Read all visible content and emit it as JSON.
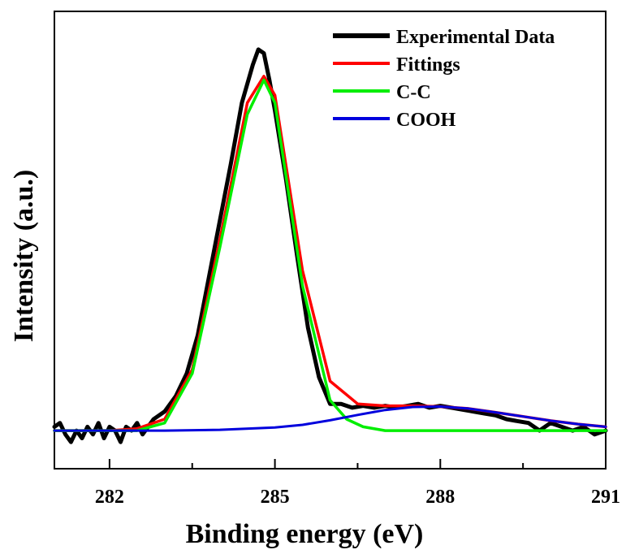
{
  "chart_data": {
    "type": "line",
    "title": "",
    "xlabel": "Binding energy (eV)",
    "ylabel": "Intensity (a.u.)",
    "xlim": [
      281,
      291
    ],
    "ylim": [
      -0.1,
      1.1
    ],
    "y_ticks_shown": false,
    "x_ticks": [
      282,
      285,
      288,
      291
    ],
    "x_tick_labels": [
      "282",
      "285",
      "288",
      "291"
    ],
    "legend_position": "top-right",
    "grid": false,
    "series": [
      {
        "name": "Experimental Data",
        "color": "#000000",
        "x": [
          281.0,
          281.1,
          281.2,
          281.3,
          281.4,
          281.5,
          281.6,
          281.7,
          281.8,
          281.9,
          282.0,
          282.1,
          282.2,
          282.3,
          282.4,
          282.5,
          282.6,
          282.7,
          282.8,
          283.0,
          283.2,
          283.4,
          283.6,
          283.8,
          284.0,
          284.2,
          284.4,
          284.6,
          284.7,
          284.8,
          284.9,
          285.0,
          285.2,
          285.4,
          285.6,
          285.8,
          286.0,
          286.2,
          286.4,
          286.6,
          286.8,
          287.0,
          287.2,
          287.4,
          287.6,
          287.8,
          288.0,
          288.2,
          288.4,
          288.6,
          288.8,
          289.0,
          289.2,
          289.4,
          289.6,
          289.8,
          290.0,
          290.2,
          290.4,
          290.6,
          290.8,
          291.0
        ],
        "y": [
          0.01,
          0.02,
          -0.01,
          -0.03,
          0.0,
          -0.02,
          0.01,
          -0.01,
          0.02,
          -0.02,
          0.01,
          0.0,
          -0.03,
          0.01,
          0.0,
          0.02,
          -0.01,
          0.01,
          0.03,
          0.05,
          0.09,
          0.15,
          0.25,
          0.4,
          0.55,
          0.7,
          0.86,
          0.96,
          1.0,
          0.99,
          0.92,
          0.84,
          0.66,
          0.46,
          0.27,
          0.14,
          0.07,
          0.07,
          0.06,
          0.065,
          0.06,
          0.065,
          0.06,
          0.065,
          0.07,
          0.06,
          0.065,
          0.06,
          0.055,
          0.05,
          0.045,
          0.04,
          0.03,
          0.025,
          0.02,
          0.0,
          0.02,
          0.01,
          0.0,
          0.01,
          -0.01,
          0.0
        ]
      },
      {
        "name": "Fittings",
        "color": "#ff0000",
        "x": [
          281.0,
          281.5,
          282.0,
          282.5,
          283.0,
          283.5,
          284.0,
          284.5,
          284.8,
          285.0,
          285.5,
          286.0,
          286.5,
          287.0,
          287.5,
          288.0,
          288.5,
          289.0,
          289.5,
          290.0,
          290.5,
          291.0
        ],
        "y": [
          0.0,
          0.0,
          0.0,
          0.005,
          0.03,
          0.16,
          0.5,
          0.86,
          0.93,
          0.88,
          0.42,
          0.13,
          0.07,
          0.065,
          0.065,
          0.063,
          0.058,
          0.048,
          0.037,
          0.026,
          0.017,
          0.01
        ]
      },
      {
        "name": "C-C",
        "color": "#00ee00",
        "x": [
          281.0,
          281.5,
          282.0,
          282.5,
          283.0,
          283.5,
          284.0,
          284.5,
          284.8,
          285.0,
          285.5,
          286.0,
          286.3,
          286.6,
          287.0,
          287.5,
          288.0,
          288.5,
          289.0,
          290.0,
          291.0
        ],
        "y": [
          0.0,
          0.0,
          0.0,
          0.0,
          0.02,
          0.15,
          0.48,
          0.83,
          0.92,
          0.86,
          0.38,
          0.08,
          0.03,
          0.01,
          0.0,
          0.0,
          0.0,
          0.0,
          0.0,
          0.0,
          0.0
        ]
      },
      {
        "name": "COOH",
        "color": "#0000dd",
        "x": [
          281.0,
          282.0,
          283.0,
          284.0,
          285.0,
          285.5,
          286.0,
          286.5,
          287.0,
          287.5,
          288.0,
          288.5,
          289.0,
          289.5,
          290.0,
          290.5,
          291.0
        ],
        "y": [
          0.0,
          0.0,
          0.0,
          0.002,
          0.008,
          0.015,
          0.027,
          0.041,
          0.054,
          0.062,
          0.063,
          0.058,
          0.048,
          0.037,
          0.026,
          0.017,
          0.01
        ]
      }
    ]
  }
}
